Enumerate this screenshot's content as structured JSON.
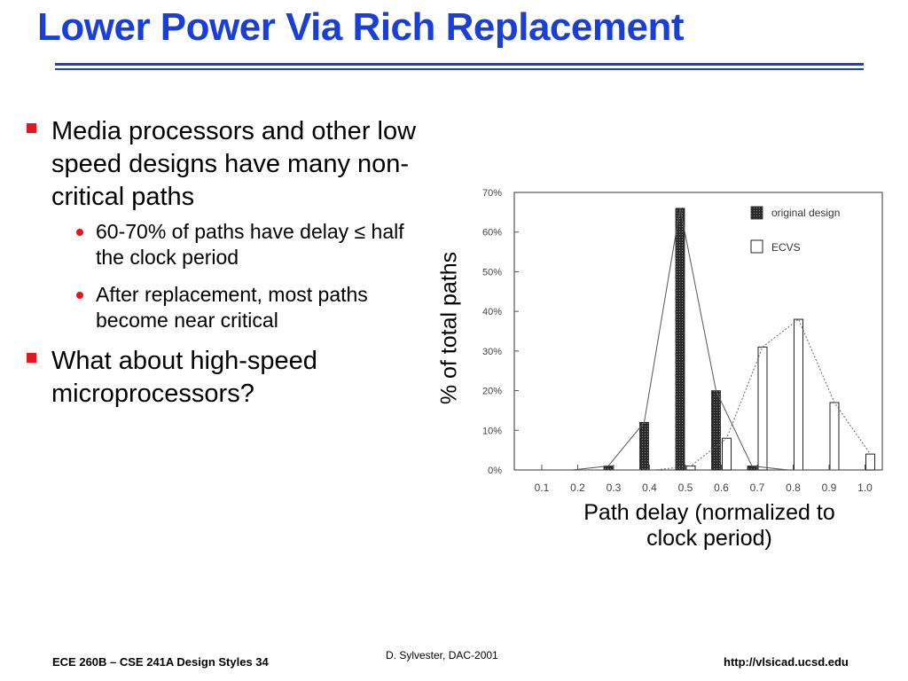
{
  "title": "Lower Power Via Rich Replacement",
  "bullets": [
    {
      "text": "Media processors and other low speed designs have many non-critical paths",
      "sub": [
        {
          "text": "60-70% of paths have delay ≤ half the clock period"
        },
        {
          "text": "After replacement, most paths become near critical"
        }
      ]
    },
    {
      "text": "What about high-speed microprocessors?",
      "sub": []
    }
  ],
  "chart_data": {
    "type": "bar",
    "categories": [
      "0.1",
      "0.2",
      "0.3",
      "0.4",
      "0.5",
      "0.6",
      "0.7",
      "0.8",
      "0.9",
      "1.0"
    ],
    "series": [
      {
        "name": "original design",
        "values": [
          0,
          0,
          1,
          12,
          66,
          20,
          1,
          0,
          0,
          0
        ]
      },
      {
        "name": "ECVS",
        "values": [
          0,
          0,
          0,
          0,
          1,
          8,
          31,
          38,
          17,
          4
        ]
      }
    ],
    "ytick_labels": [
      "0%",
      "10%",
      "20%",
      "30%",
      "40%",
      "50%",
      "60%",
      "70%"
    ],
    "ylim": [
      0,
      70
    ],
    "ylabel": "% of total paths",
    "xlabel": "Path delay (normalized to clock period)",
    "legend_position": "top-right",
    "grid": false,
    "colors": {
      "original": "#333333",
      "ecvs": "#ffffff",
      "axis": "#555555"
    }
  },
  "footer": {
    "left": "ECE 260B – CSE 241A Design Styles 34",
    "center": "D. Sylvester, DAC-2001",
    "right": "http://vlsicad.ucsd.edu"
  },
  "colors": {
    "title": "#1a3fd6",
    "bullet": "#e8141c"
  }
}
